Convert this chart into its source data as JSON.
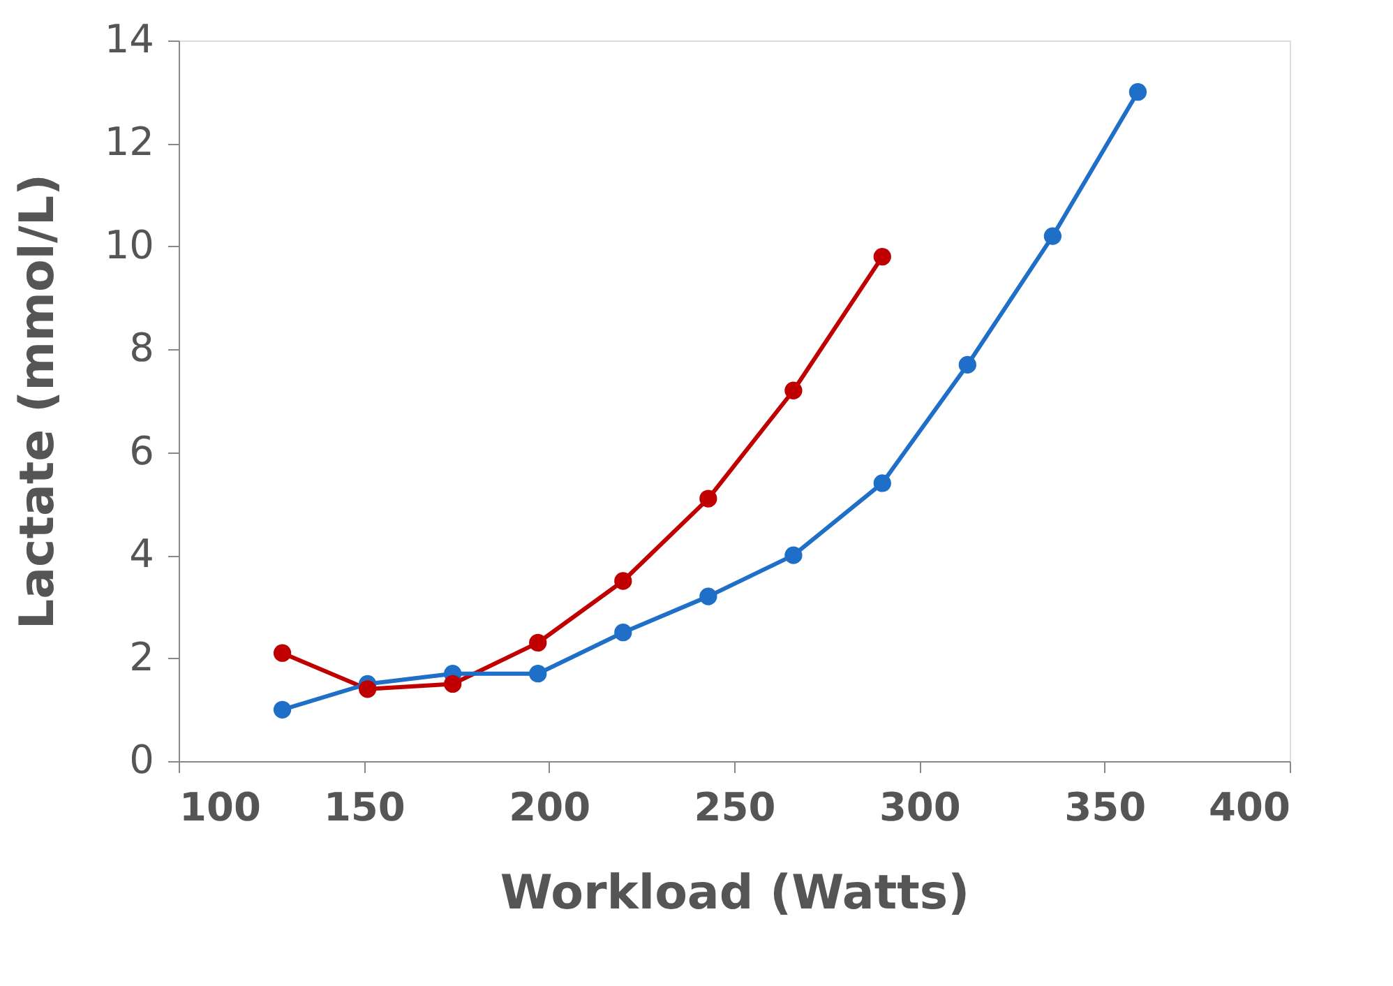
{
  "chart_data": {
    "type": "line",
    "xlabel": "Workload (Watts)",
    "ylabel": "Lactate (mmol/L)",
    "xlim": [
      100,
      400
    ],
    "xticks": [
      100,
      150,
      200,
      250,
      300,
      350,
      400
    ],
    "ylim": [
      0,
      14
    ],
    "yticks": [
      0,
      2,
      4,
      6,
      8,
      10,
      12,
      14
    ],
    "grid": false,
    "marker": "circle",
    "line_style": "solid",
    "series": [
      {
        "color": "#c00000",
        "x": [
          128,
          151,
          174,
          197,
          220,
          243,
          266,
          290
        ],
        "values": [
          2.1,
          1.4,
          1.5,
          2.3,
          3.5,
          5.1,
          7.2,
          9.8
        ]
      },
      {
        "color": "#1f6fc8",
        "x": [
          128,
          151,
          174,
          197,
          220,
          243,
          266,
          290,
          313,
          336,
          359
        ],
        "values": [
          1.0,
          1.5,
          1.7,
          1.7,
          2.5,
          3.2,
          4.0,
          5.4,
          7.7,
          10.2,
          13.0
        ]
      }
    ]
  }
}
